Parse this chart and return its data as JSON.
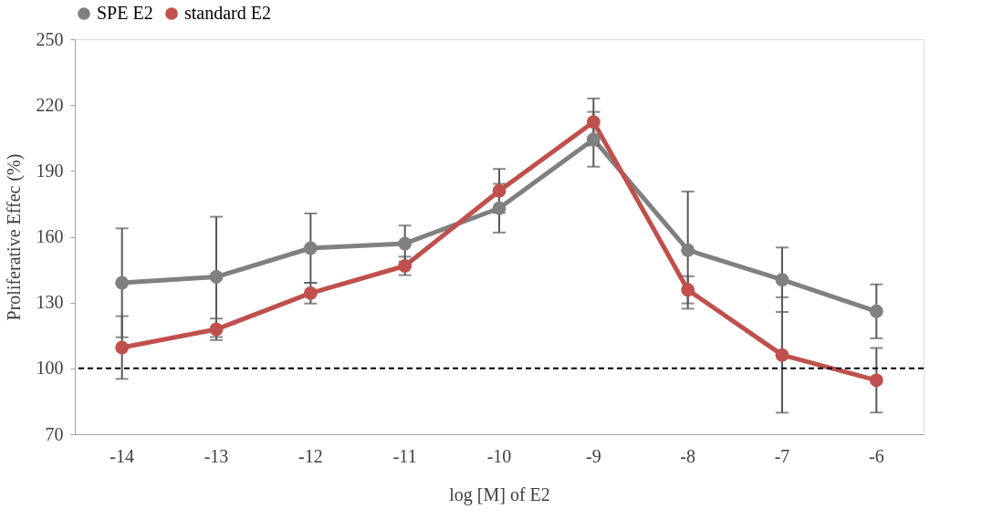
{
  "chart_data": {
    "type": "line",
    "xlabel": "log [M] of  E2",
    "ylabel": "Proliferative Effec (%)",
    "categories": [
      "-14",
      "-13",
      "-12",
      "-11",
      "-10",
      "-9",
      "-8",
      "-7",
      "-6"
    ],
    "series": [
      {
        "name": "SPE E2",
        "color": "#808080",
        "values": [
          139.0,
          141.7,
          154.8,
          156.9,
          173.0,
          204.4,
          153.9,
          140.4,
          126.0
        ],
        "errors": [
          24.8,
          27.4,
          15.8,
          8.2,
          11.1,
          12.5,
          26.7,
          14.7,
          12.3
        ]
      },
      {
        "name": "standard E2",
        "color": "#c0504d",
        "values": [
          109.5,
          117.8,
          134.3,
          146.7,
          180.9,
          212.3,
          135.8,
          106.1,
          94.6
        ],
        "errors": [
          14.3,
          4.9,
          4.7,
          4.2,
          10.0,
          10.7,
          6.2,
          26.3,
          14.7
        ]
      }
    ],
    "ylim": [
      70,
      250
    ],
    "yticks": [
      70,
      100,
      130,
      160,
      190,
      220,
      250
    ],
    "ref_lines": [
      {
        "axis": "y",
        "value": 100,
        "color": "#000000",
        "line_style": "dashed"
      }
    ],
    "legend": "top",
    "marker": "circle",
    "line_style": "solid",
    "grid": false
  }
}
